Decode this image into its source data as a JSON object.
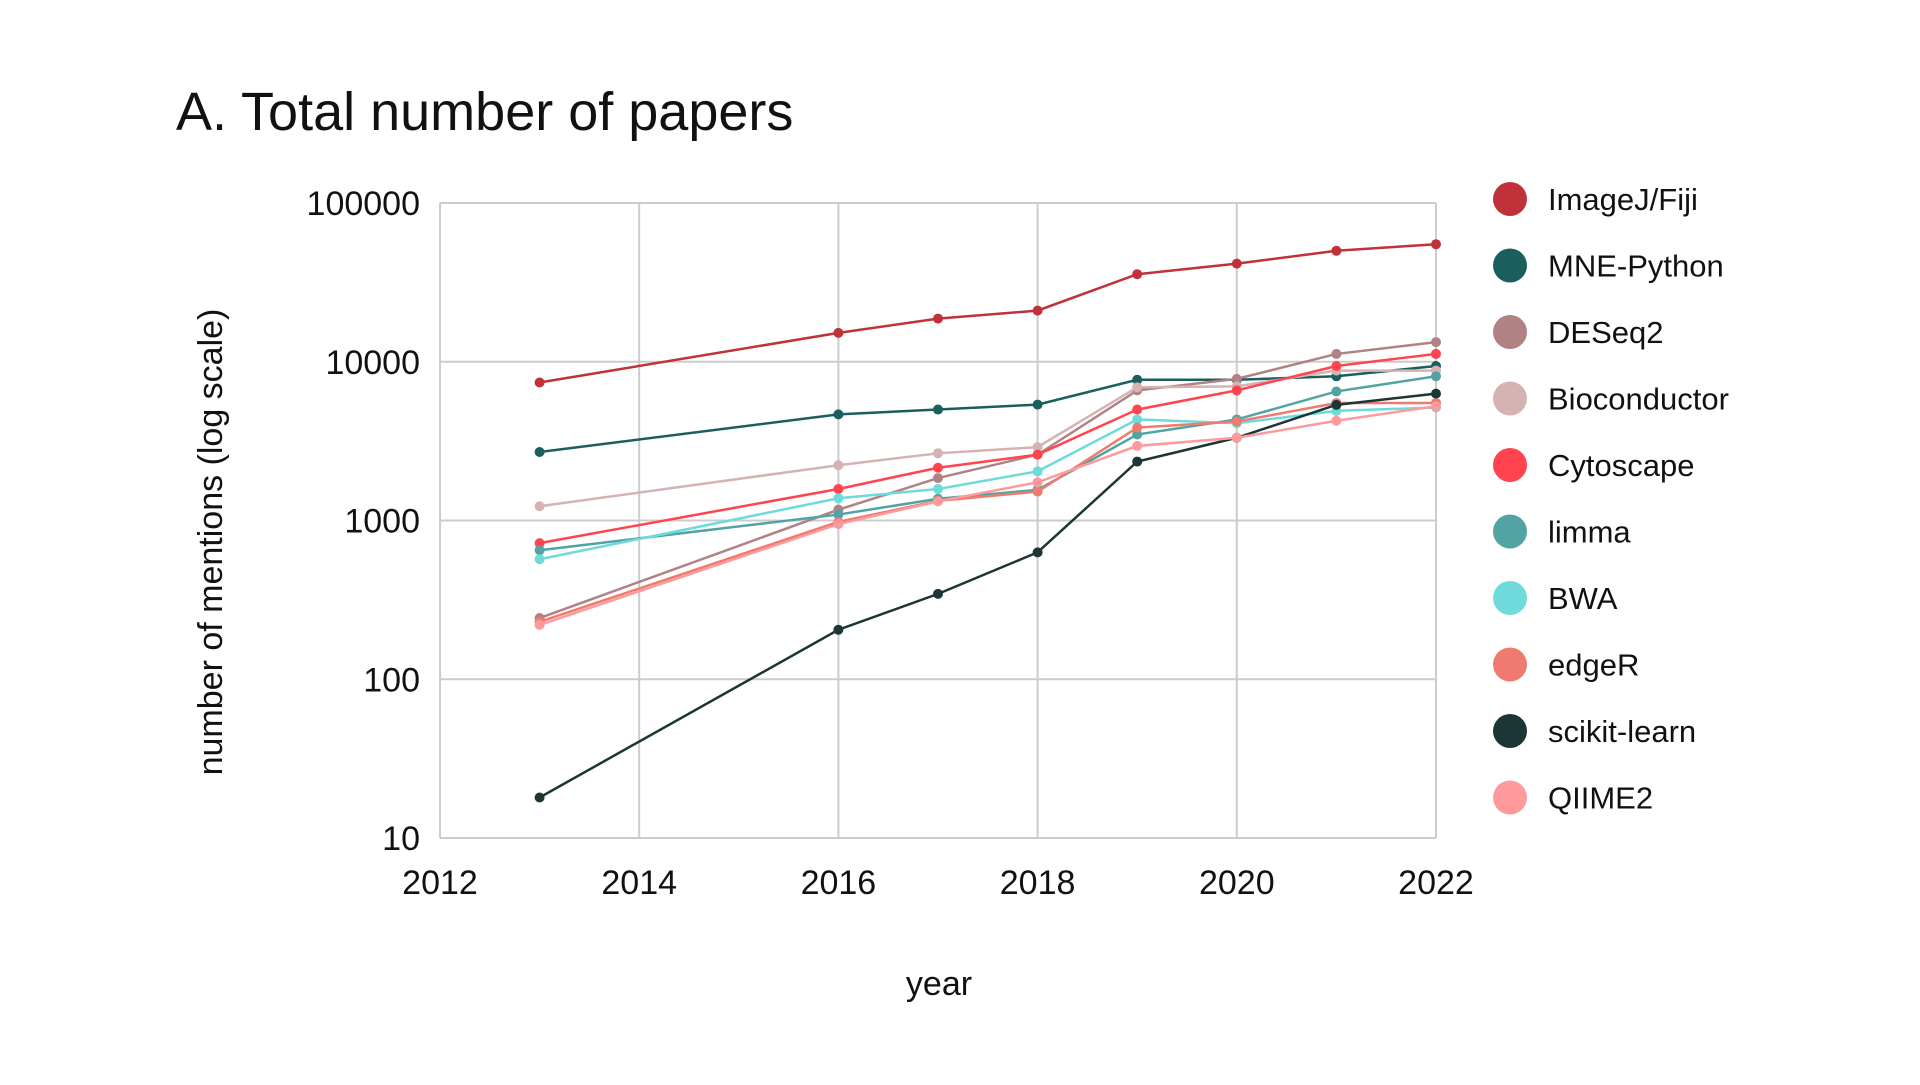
{
  "chart_data": {
    "type": "line",
    "title": "A. Total number of papers",
    "xlabel": "year",
    "ylabel": "number of mentions (log scale)",
    "xlim": [
      2012,
      2022
    ],
    "ylim": [
      10,
      100000
    ],
    "yscale": "log",
    "grid": true,
    "legend_placement": "right",
    "x_ticks": [
      "2012",
      "2014",
      "2016",
      "2018",
      "2020",
      "2022"
    ],
    "y_ticks": [
      "10",
      "100",
      "1000",
      "10000",
      "100000"
    ],
    "x": [
      2013,
      2016,
      2017,
      2018,
      2019,
      2020,
      2021,
      2022
    ],
    "series": [
      {
        "name": "ImageJ/Fiji",
        "color": "#c0313a",
        "values": [
          7400,
          15200,
          18700,
          21000,
          35600,
          41500,
          50000,
          55000
        ]
      },
      {
        "name": "MNE-Python",
        "color": "#1b5e5e",
        "values": [
          2700,
          4660,
          5000,
          5370,
          7700,
          7700,
          8100,
          9400
        ]
      },
      {
        "name": "DESeq2",
        "color": "#b08284",
        "values": [
          243,
          1170,
          1850,
          2600,
          6600,
          7800,
          11200,
          13300
        ]
      },
      {
        "name": "Bioconductor",
        "color": "#d6b3b3",
        "values": [
          1230,
          2230,
          2650,
          2900,
          6900,
          7000,
          8800,
          8800
        ]
      },
      {
        "name": "Cytoscape",
        "color": "#ff4450",
        "values": [
          720,
          1580,
          2150,
          2600,
          5000,
          6600,
          9400,
          11200
        ]
      },
      {
        "name": "limma",
        "color": "#52a3a3",
        "values": [
          650,
          1090,
          1370,
          1560,
          3480,
          4330,
          6500,
          8100
        ]
      },
      {
        "name": "BWA",
        "color": "#6fdada",
        "values": [
          570,
          1380,
          1580,
          2040,
          4330,
          4100,
          4900,
          5150
        ]
      },
      {
        "name": "edgeR",
        "color": "#ef7b70",
        "values": [
          230,
          980,
          1330,
          1520,
          3850,
          4200,
          5500,
          5500
        ]
      },
      {
        "name": "scikit-learn",
        "color": "#1c3535",
        "values": [
          18,
          205,
          345,
          630,
          2350,
          3320,
          5350,
          6300
        ]
      },
      {
        "name": "QIIME2",
        "color": "#ff9a9c",
        "values": [
          220,
          950,
          1320,
          1740,
          2950,
          3320,
          4250,
          5250
        ]
      }
    ]
  }
}
